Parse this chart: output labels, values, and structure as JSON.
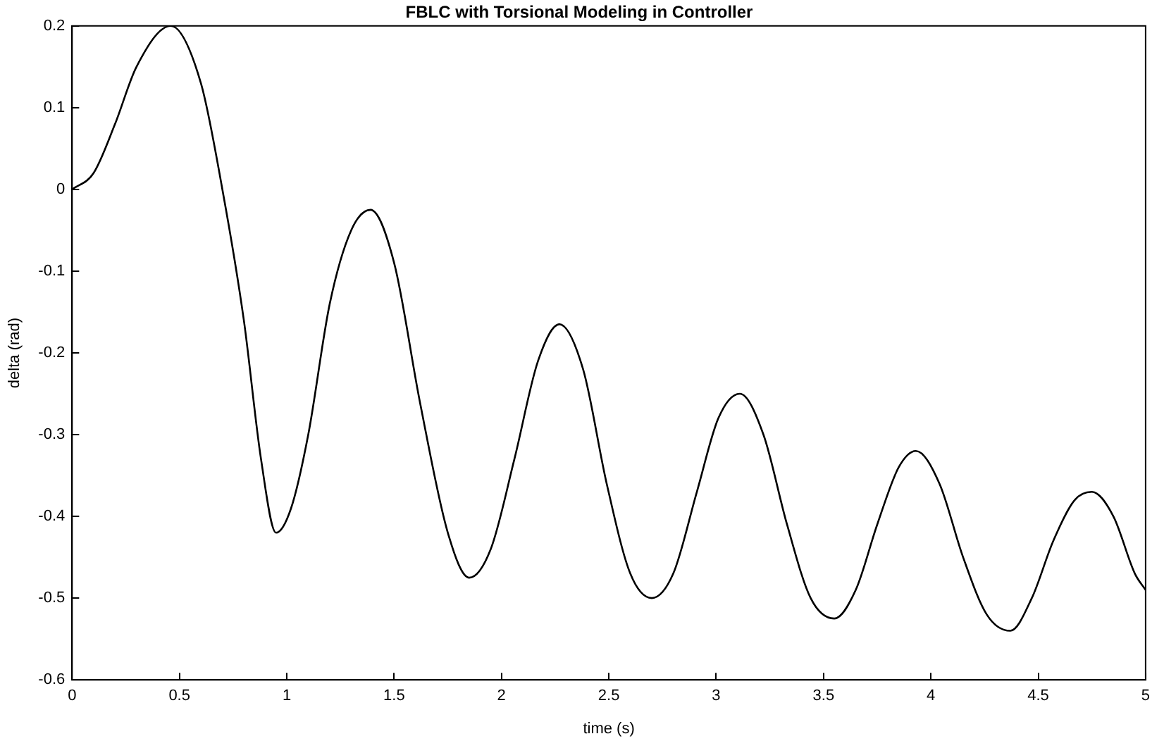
{
  "chart_data": {
    "type": "line",
    "title": "FBLC with Torsional Modeling in Controller",
    "xlabel": "time (s)",
    "ylabel": "delta (rad)",
    "x": [
      0,
      0.1,
      0.2,
      0.3,
      0.46,
      0.6,
      0.7,
      0.8,
      0.88,
      0.95,
      1.02,
      1.1,
      1.2,
      1.3,
      1.39,
      1.5,
      1.62,
      1.75,
      1.85,
      1.95,
      2.06,
      2.17,
      2.27,
      2.38,
      2.49,
      2.6,
      2.7,
      2.8,
      2.91,
      3.01,
      3.11,
      3.22,
      3.33,
      3.44,
      3.55,
      3.65,
      3.75,
      3.85,
      3.93,
      4.04,
      4.15,
      4.26,
      4.37,
      4.47,
      4.57,
      4.67,
      4.75,
      4.85,
      4.95,
      5
    ],
    "series": [
      {
        "color": "#000000",
        "values": [
          0,
          0.02,
          0.08,
          0.15,
          0.2,
          0.13,
          0.0,
          -0.16,
          -0.33,
          -0.42,
          -0.39,
          -0.3,
          -0.14,
          -0.05,
          -0.025,
          -0.09,
          -0.26,
          -0.42,
          -0.475,
          -0.44,
          -0.33,
          -0.21,
          -0.165,
          -0.22,
          -0.36,
          -0.47,
          -0.5,
          -0.47,
          -0.37,
          -0.28,
          -0.25,
          -0.3,
          -0.41,
          -0.5,
          -0.525,
          -0.49,
          -0.41,
          -0.34,
          -0.32,
          -0.36,
          -0.45,
          -0.52,
          -0.54,
          -0.5,
          -0.43,
          -0.38,
          -0.37,
          -0.4,
          -0.47,
          -0.49
        ]
      }
    ],
    "xlim": [
      0,
      5
    ],
    "xticks": [
      0,
      0.5,
      1,
      1.5,
      2,
      2.5,
      3,
      3.5,
      4,
      4.5,
      5
    ],
    "ylim": [
      -0.6,
      0.2
    ],
    "yticks": [
      -0.6,
      -0.5,
      -0.4,
      -0.3,
      -0.2,
      -0.1,
      0,
      0.1,
      0.2
    ],
    "grid": false,
    "legend": false,
    "marker": "none",
    "line_style": "solid"
  }
}
